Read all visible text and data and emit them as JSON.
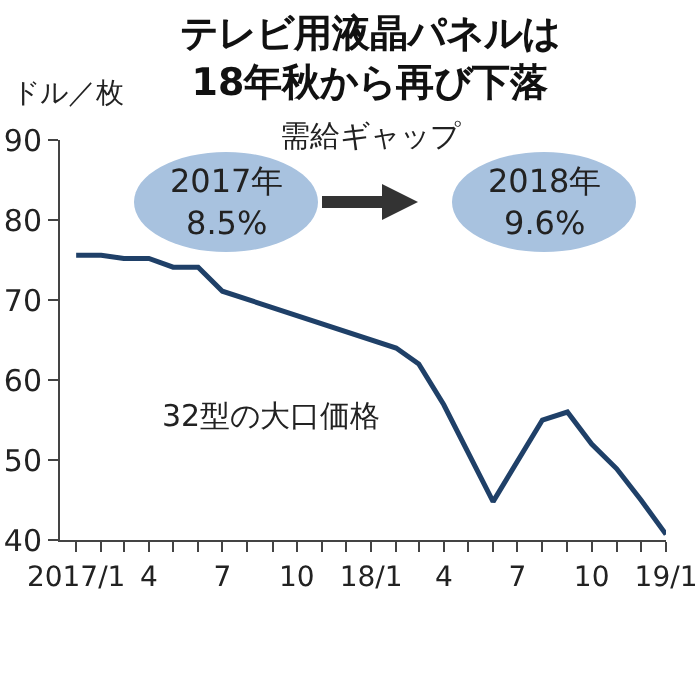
{
  "chart_data": {
    "type": "line",
    "title": "テレビ用液晶パネルは\n18年秋から再び下落",
    "ylabel": "ドル／枚",
    "annotations": [
      "需給ギャップ",
      "2017年\n8.5%",
      "2018年\n9.6%"
    ],
    "x": [
      "2017-01",
      "2017-02",
      "2017-03",
      "2017-04",
      "2017-05",
      "2017-06",
      "2017-07",
      "2018-02",
      "2018-03",
      "2018-04",
      "2018-06",
      "2018-08",
      "2018-09",
      "2018-10",
      "2018-11",
      "2018-12",
      "2019-01"
    ],
    "series": [
      {
        "name": "32型の大口価格",
        "color": "#1f4068",
        "values": [
          75.6,
          75.6,
          75.2,
          75.2,
          74.1,
          74.1,
          71.1,
          64.0,
          62.0,
          56.9,
          44.8,
          55.0,
          56.0,
          52.0,
          48.9,
          45.0,
          40.7
        ]
      }
    ],
    "xlim": [
      "2016-12-12",
      "2019-01-01"
    ],
    "xticks": [
      {
        "value": "2017-01",
        "label": "2017/1"
      },
      {
        "value": "2017-02",
        "label": null
      },
      {
        "value": "2017-03",
        "label": null
      },
      {
        "value": "2017-04",
        "label": "4"
      },
      {
        "value": "2017-05",
        "label": null
      },
      {
        "value": "2017-06",
        "label": null
      },
      {
        "value": "2017-07",
        "label": "7"
      },
      {
        "value": "2017-08",
        "label": null
      },
      {
        "value": "2017-09",
        "label": null
      },
      {
        "value": "2017-10",
        "label": "10"
      },
      {
        "value": "2017-11",
        "label": null
      },
      {
        "value": "2017-12",
        "label": null
      },
      {
        "value": "2018-01",
        "label": "18/1"
      },
      {
        "value": "2018-02",
        "label": null
      },
      {
        "value": "2018-03",
        "label": null
      },
      {
        "value": "2018-04",
        "label": "4"
      },
      {
        "value": "2018-05",
        "label": null
      },
      {
        "value": "2018-06",
        "label": null
      },
      {
        "value": "2018-07",
        "label": "7"
      },
      {
        "value": "2018-08",
        "label": null
      },
      {
        "value": "2018-09",
        "label": null
      },
      {
        "value": "2018-10",
        "label": "10"
      },
      {
        "value": "2018-11",
        "label": null
      },
      {
        "value": "2018-12",
        "label": null
      },
      {
        "value": "2019-01",
        "label": "19/1"
      }
    ],
    "ylim": [
      40,
      90
    ],
    "yticks": [
      40,
      50,
      60,
      70,
      80,
      90
    ],
    "grid": false,
    "legend": false,
    "marker": "none",
    "line_style": "solid"
  }
}
